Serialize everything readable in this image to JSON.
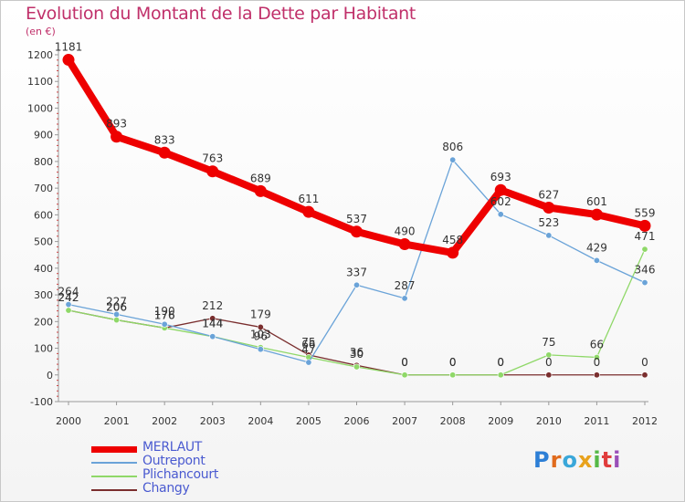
{
  "title": "Evolution du Montant de la Dette par Habitant",
  "subtitle": "(en €)",
  "logo": {
    "text": "Proxiti",
    "letter_colors": [
      "#2d7fd6",
      "#e06b1d",
      "#3aa7d9",
      "#e8a21c",
      "#56b847",
      "#e03c3c",
      "#9a4fb8"
    ]
  },
  "chart_data": {
    "type": "line",
    "title": "Evolution du Montant de la Dette par Habitant",
    "ylabel": "(en €)",
    "xlabel": "",
    "x": [
      "2000",
      "2001",
      "2002",
      "2003",
      "2004",
      "2005",
      "2006",
      "2007",
      "2008",
      "2009",
      "2010",
      "2011",
      "2012"
    ],
    "ylim": [
      -100,
      1200
    ],
    "yticks": [
      -100,
      0,
      100,
      200,
      300,
      400,
      500,
      600,
      700,
      800,
      900,
      1000,
      1100,
      1200
    ],
    "grid": false,
    "legend_position": "bottom-left",
    "series": [
      {
        "name": "MERLAUT",
        "color": "#ee0000",
        "values": [
          1181,
          893,
          833,
          763,
          689,
          611,
          537,
          490,
          458,
          693,
          627,
          601,
          559
        ],
        "labels": [
          "1181",
          "893",
          "833",
          "763",
          "689",
          "611",
          "537",
          "490",
          "458",
          "693",
          "627",
          "601",
          "559"
        ]
      },
      {
        "name": "Outrepont",
        "color": "#6aa3d8",
        "values": [
          264,
          227,
          190,
          144,
          96,
          47,
          337,
          287,
          806,
          602,
          523,
          429,
          346
        ],
        "labels": [
          "264",
          "227",
          "190",
          "144",
          "96",
          "47",
          "337",
          "287",
          "806",
          "602",
          "523",
          "429",
          "346"
        ]
      },
      {
        "name": "Plichancourt",
        "color": "#8fd868",
        "values": [
          242,
          206,
          176,
          144,
          103,
          66,
          30,
          0,
          0,
          0,
          75,
          66,
          471
        ],
        "labels": [
          "242",
          "206",
          "176",
          "144",
          "103",
          "66",
          "30",
          "0",
          "0",
          "0",
          "75",
          "66",
          "471"
        ]
      },
      {
        "name": "Changy",
        "color": "#7a2e2e",
        "values": [
          242,
          206,
          176,
          212,
          179,
          75,
          36,
          0,
          0,
          0,
          0,
          0,
          0
        ],
        "labels": [
          "242",
          "206",
          "176",
          "212",
          "179",
          "75",
          "36",
          "0",
          "0",
          "0",
          "0",
          "0",
          "0"
        ]
      }
    ]
  }
}
